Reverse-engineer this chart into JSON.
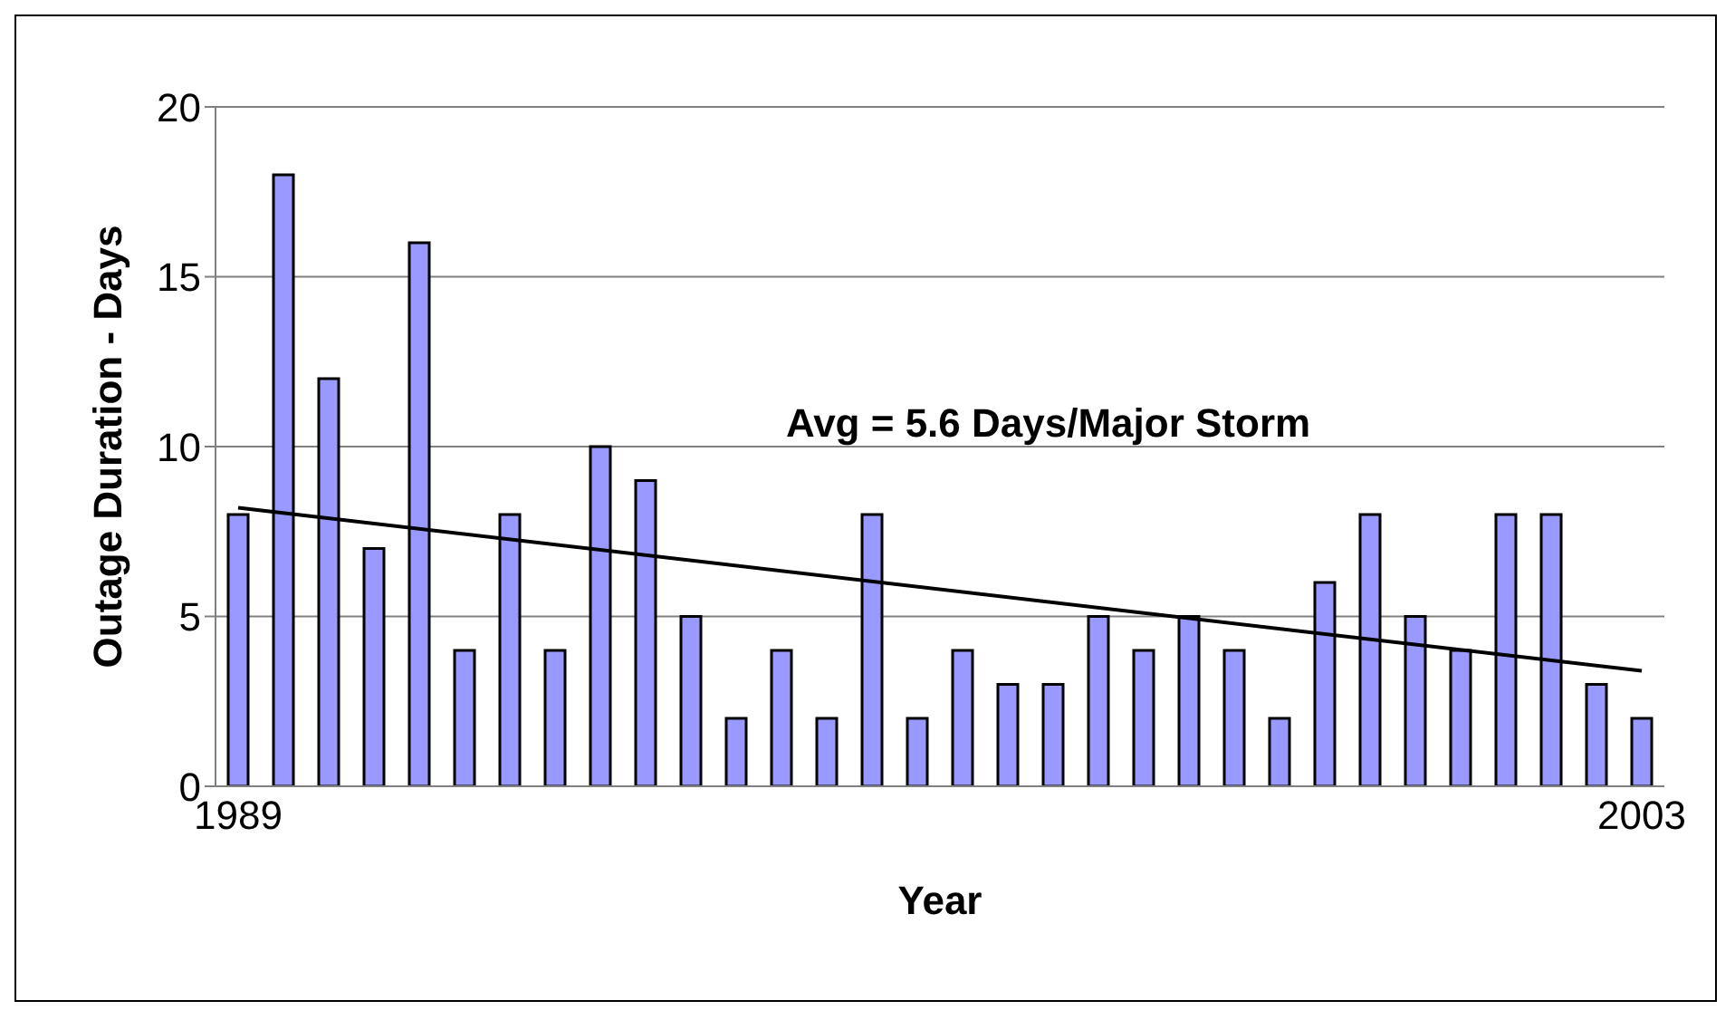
{
  "chart_data": {
    "type": "bar",
    "xlabel": "Year",
    "ylabel": "Outage Duration - Days",
    "categories": [
      "1989",
      null,
      null,
      null,
      null,
      null,
      null,
      null,
      null,
      null,
      null,
      null,
      null,
      null,
      null,
      null,
      null,
      null,
      null,
      null,
      null,
      null,
      null,
      null,
      null,
      null,
      null,
      null,
      null,
      null,
      null,
      "2003"
    ],
    "series": [
      {
        "color": "#9999ff",
        "values": [
          8,
          18,
          12,
          7,
          16,
          4,
          8,
          4,
          10,
          9,
          5,
          2,
          4,
          2,
          8,
          2,
          4,
          3,
          3,
          5,
          4,
          5,
          4,
          2,
          6,
          8,
          5,
          4,
          8,
          8,
          3,
          2
        ]
      },
      {
        "type": "line",
        "color": "#000000",
        "values": [
          8.2,
          null,
          null,
          null,
          null,
          null,
          null,
          null,
          null,
          null,
          null,
          null,
          null,
          null,
          null,
          null,
          null,
          null,
          null,
          null,
          null,
          null,
          null,
          null,
          null,
          null,
          null,
          null,
          null,
          null,
          null,
          3.4
        ]
      }
    ],
    "ylim": [
      0,
      20
    ],
    "yticks": [
      0,
      5,
      10,
      15,
      20
    ],
    "grid": "y",
    "legend": false,
    "annotations": [
      "Avg = 5.6 Days/Major Storm"
    ]
  }
}
